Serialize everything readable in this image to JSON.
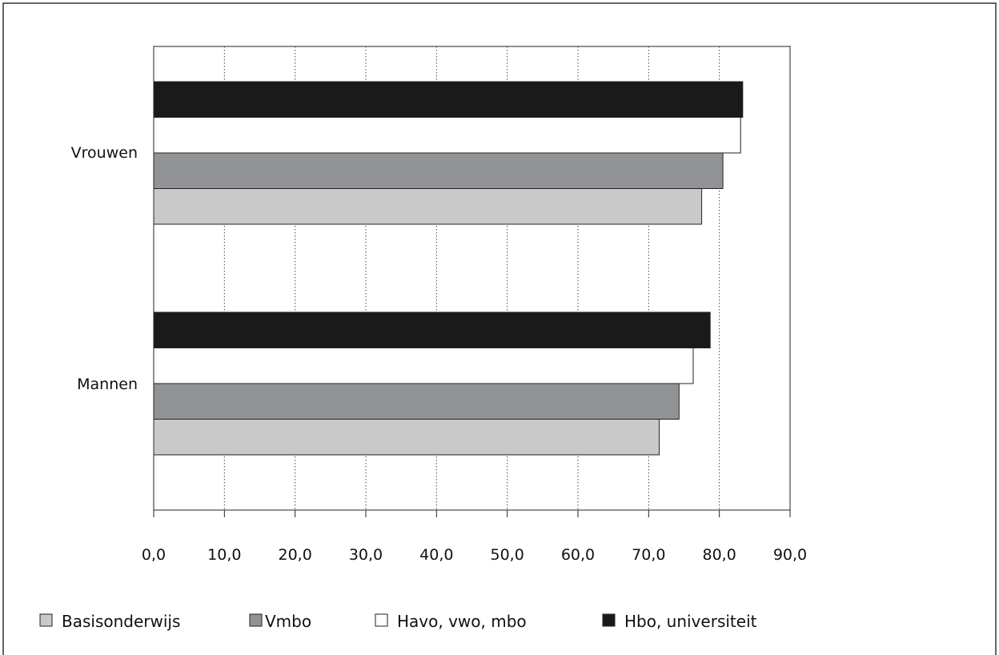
{
  "chart_data": {
    "type": "bar",
    "orientation": "horizontal",
    "title": "",
    "xlabel": "",
    "ylabel": "",
    "categories": [
      "Vrouwen",
      "Mannen"
    ],
    "series": [
      {
        "name": "Basisonderwijs",
        "color": "#c9c9c9",
        "values": [
          77.5,
          71.5
        ]
      },
      {
        "name": "Vmbo",
        "color": "#929396",
        "values": [
          80.5,
          74.3
        ]
      },
      {
        "name": "Havo, vwo, mbo",
        "color": "#ffffff",
        "values": [
          83.0,
          76.3
        ]
      },
      {
        "name": "Hbo, universiteit",
        "color": "#1a1a1a",
        "values": [
          83.3,
          78.7
        ]
      }
    ],
    "xlim": [
      0,
      90
    ],
    "xticks": [
      0,
      10,
      20,
      30,
      40,
      50,
      60,
      70,
      80,
      90
    ],
    "xtick_labels": [
      "0,0",
      "10,0",
      "20,0",
      "30,0",
      "40,0",
      "50,0",
      "60,0",
      "70,0",
      "80,0",
      "90,0"
    ],
    "grid": "vertical dotted",
    "legend_position": "bottom"
  }
}
